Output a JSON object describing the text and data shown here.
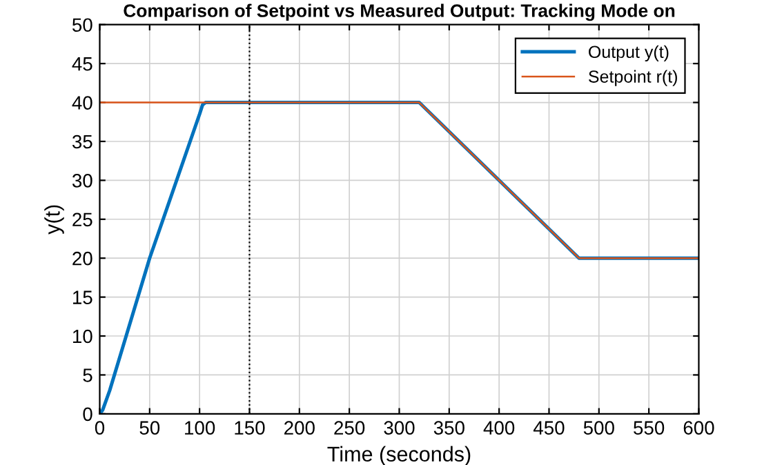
{
  "chart_data": {
    "type": "line",
    "title": "Comparison of Setpoint vs Measured Output: Tracking Mode on",
    "xlabel": "Time (seconds)",
    "ylabel": "y(t)",
    "series": [
      {
        "name": "Output y(t)",
        "color": "#0072bd",
        "x": [
          0,
          3,
          10,
          50,
          100,
          103,
          106,
          110,
          320,
          480,
          600
        ],
        "values": [
          0,
          0.5,
          3,
          20,
          38.5,
          39.7,
          40,
          40,
          40,
          20,
          20
        ]
      },
      {
        "name": "Setpoint r(t)",
        "color": "#d95319",
        "x": [
          0,
          320,
          480,
          600
        ],
        "values": [
          40,
          40,
          20,
          20
        ]
      }
    ],
    "ref_lines": [
      {
        "axis": "x",
        "value": 150,
        "label": null,
        "color": "#000000",
        "line_style": "dotted"
      }
    ],
    "xlim": [
      0,
      600
    ],
    "xticks": [
      0,
      50,
      100,
      150,
      200,
      250,
      300,
      350,
      400,
      450,
      500,
      550,
      600
    ],
    "ylim": [
      0,
      50
    ],
    "yticks": [
      0,
      5,
      10,
      15,
      20,
      25,
      30,
      35,
      40,
      45,
      50
    ],
    "grid": true,
    "legend": "top right",
    "marker": "none",
    "line_style": "solid"
  }
}
